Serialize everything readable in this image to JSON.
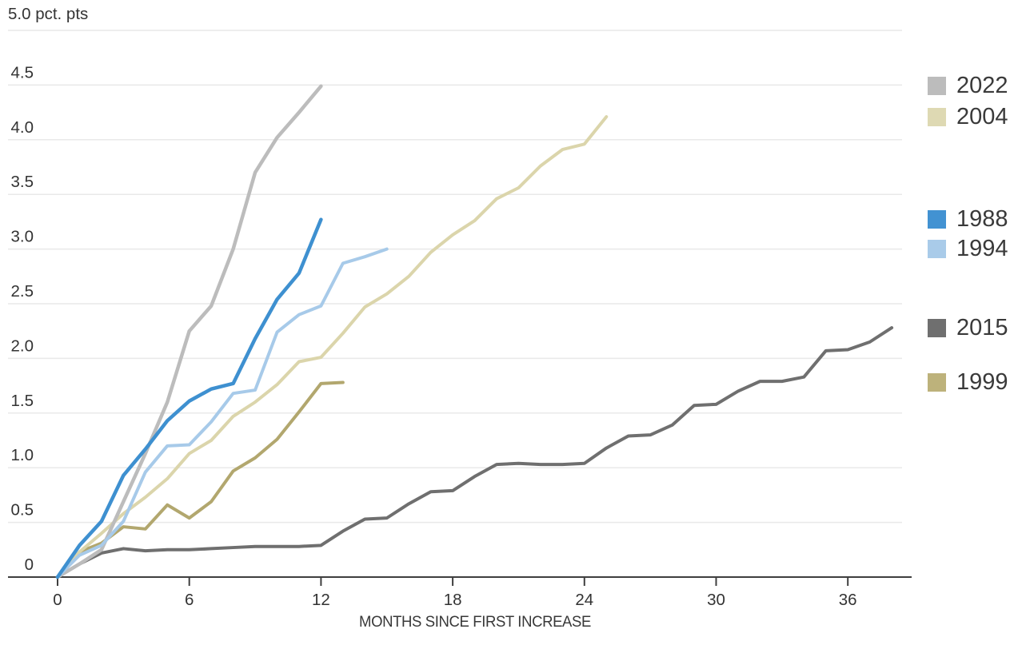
{
  "chart_data": {
    "type": "line",
    "title": "",
    "unit_label": "5.0 pct. pts",
    "xlabel": "MONTHS SINCE FIRST INCREASE",
    "ylabel": "",
    "x_unit": "months since first increase",
    "xlim": [
      0,
      38.7
    ],
    "ylim": [
      0,
      5
    ],
    "grid": true,
    "legend_position": "right",
    "x_ticks": [
      0,
      6,
      12,
      18,
      24,
      30,
      36
    ],
    "y_ticks": [
      {
        "value": 0,
        "label": "0"
      },
      {
        "value": 0.5,
        "label": "0.5"
      },
      {
        "value": 1,
        "label": "1.0"
      },
      {
        "value": 1.5,
        "label": "1.5"
      },
      {
        "value": 2,
        "label": "2.0"
      },
      {
        "value": 2.5,
        "label": "2.5"
      },
      {
        "value": 3,
        "label": "3.0"
      },
      {
        "value": 3.5,
        "label": "3.5"
      },
      {
        "value": 4,
        "label": "4.0"
      },
      {
        "value": 4.5,
        "label": "4.5"
      }
    ],
    "series": [
      {
        "name": "2022",
        "color": "#bcbcbc",
        "line_width": 4.5,
        "start_month": 0,
        "values": [
          0,
          0.12,
          0.25,
          0.69,
          1.13,
          1.6,
          2.25,
          2.48,
          3.0,
          3.7,
          4.02,
          4.25,
          4.49
        ]
      },
      {
        "name": "2004",
        "color": "#dbd5ab",
        "line_width": 4,
        "start_month": 0,
        "values": [
          0,
          0.23,
          0.4,
          0.58,
          0.73,
          0.9,
          1.13,
          1.25,
          1.47,
          1.6,
          1.76,
          1.97,
          2.01,
          2.23,
          2.47,
          2.59,
          2.75,
          2.97,
          3.13,
          3.26,
          3.46,
          3.56,
          3.76,
          3.91,
          3.96,
          4.21
        ]
      },
      {
        "name": "1988",
        "color": "#3e90d0",
        "line_width": 4.5,
        "start_month": 0,
        "values": [
          0,
          0.29,
          0.51,
          0.93,
          1.17,
          1.43,
          1.61,
          1.72,
          1.77,
          2.18,
          2.54,
          2.78,
          3.27
        ]
      },
      {
        "name": "1994",
        "color": "#a7cae9",
        "line_width": 4,
        "start_month": 0,
        "values": [
          0,
          0.2,
          0.29,
          0.51,
          0.96,
          1.2,
          1.21,
          1.42,
          1.68,
          1.71,
          2.24,
          2.4,
          2.48,
          2.87,
          2.93,
          3.0
        ]
      },
      {
        "name": "2015",
        "color": "#6f6f6f",
        "line_width": 4,
        "start_month": 0,
        "values": [
          0,
          0.12,
          0.22,
          0.26,
          0.24,
          0.25,
          0.25,
          0.26,
          0.27,
          0.28,
          0.28,
          0.28,
          0.29,
          0.42,
          0.53,
          0.54,
          0.67,
          0.78,
          0.79,
          0.92,
          1.03,
          1.04,
          1.03,
          1.03,
          1.04,
          1.18,
          1.29,
          1.3,
          1.39,
          1.57,
          1.58,
          1.7,
          1.79,
          1.79,
          1.83,
          2.07,
          2.08,
          2.15,
          2.28
        ]
      },
      {
        "name": "1999",
        "color": "#b2a76e",
        "line_width": 4,
        "start_month": 0,
        "values": [
          0,
          0.23,
          0.31,
          0.46,
          0.44,
          0.66,
          0.54,
          0.69,
          0.97,
          1.09,
          1.26,
          1.51,
          1.77,
          1.78
        ]
      }
    ],
    "legend_swatch_colors": {
      "2022": "#bcbcbc",
      "2004": "#ded9b3",
      "1988": "#4292d2",
      "1994": "#a9cbe9",
      "2015": "#6f6f6f",
      "1999": "#bdb27b"
    },
    "styles": {
      "grid_color": "#e9e9e9",
      "axis_color": "#3f3f3f",
      "tick_text_color": "#333333"
    }
  }
}
